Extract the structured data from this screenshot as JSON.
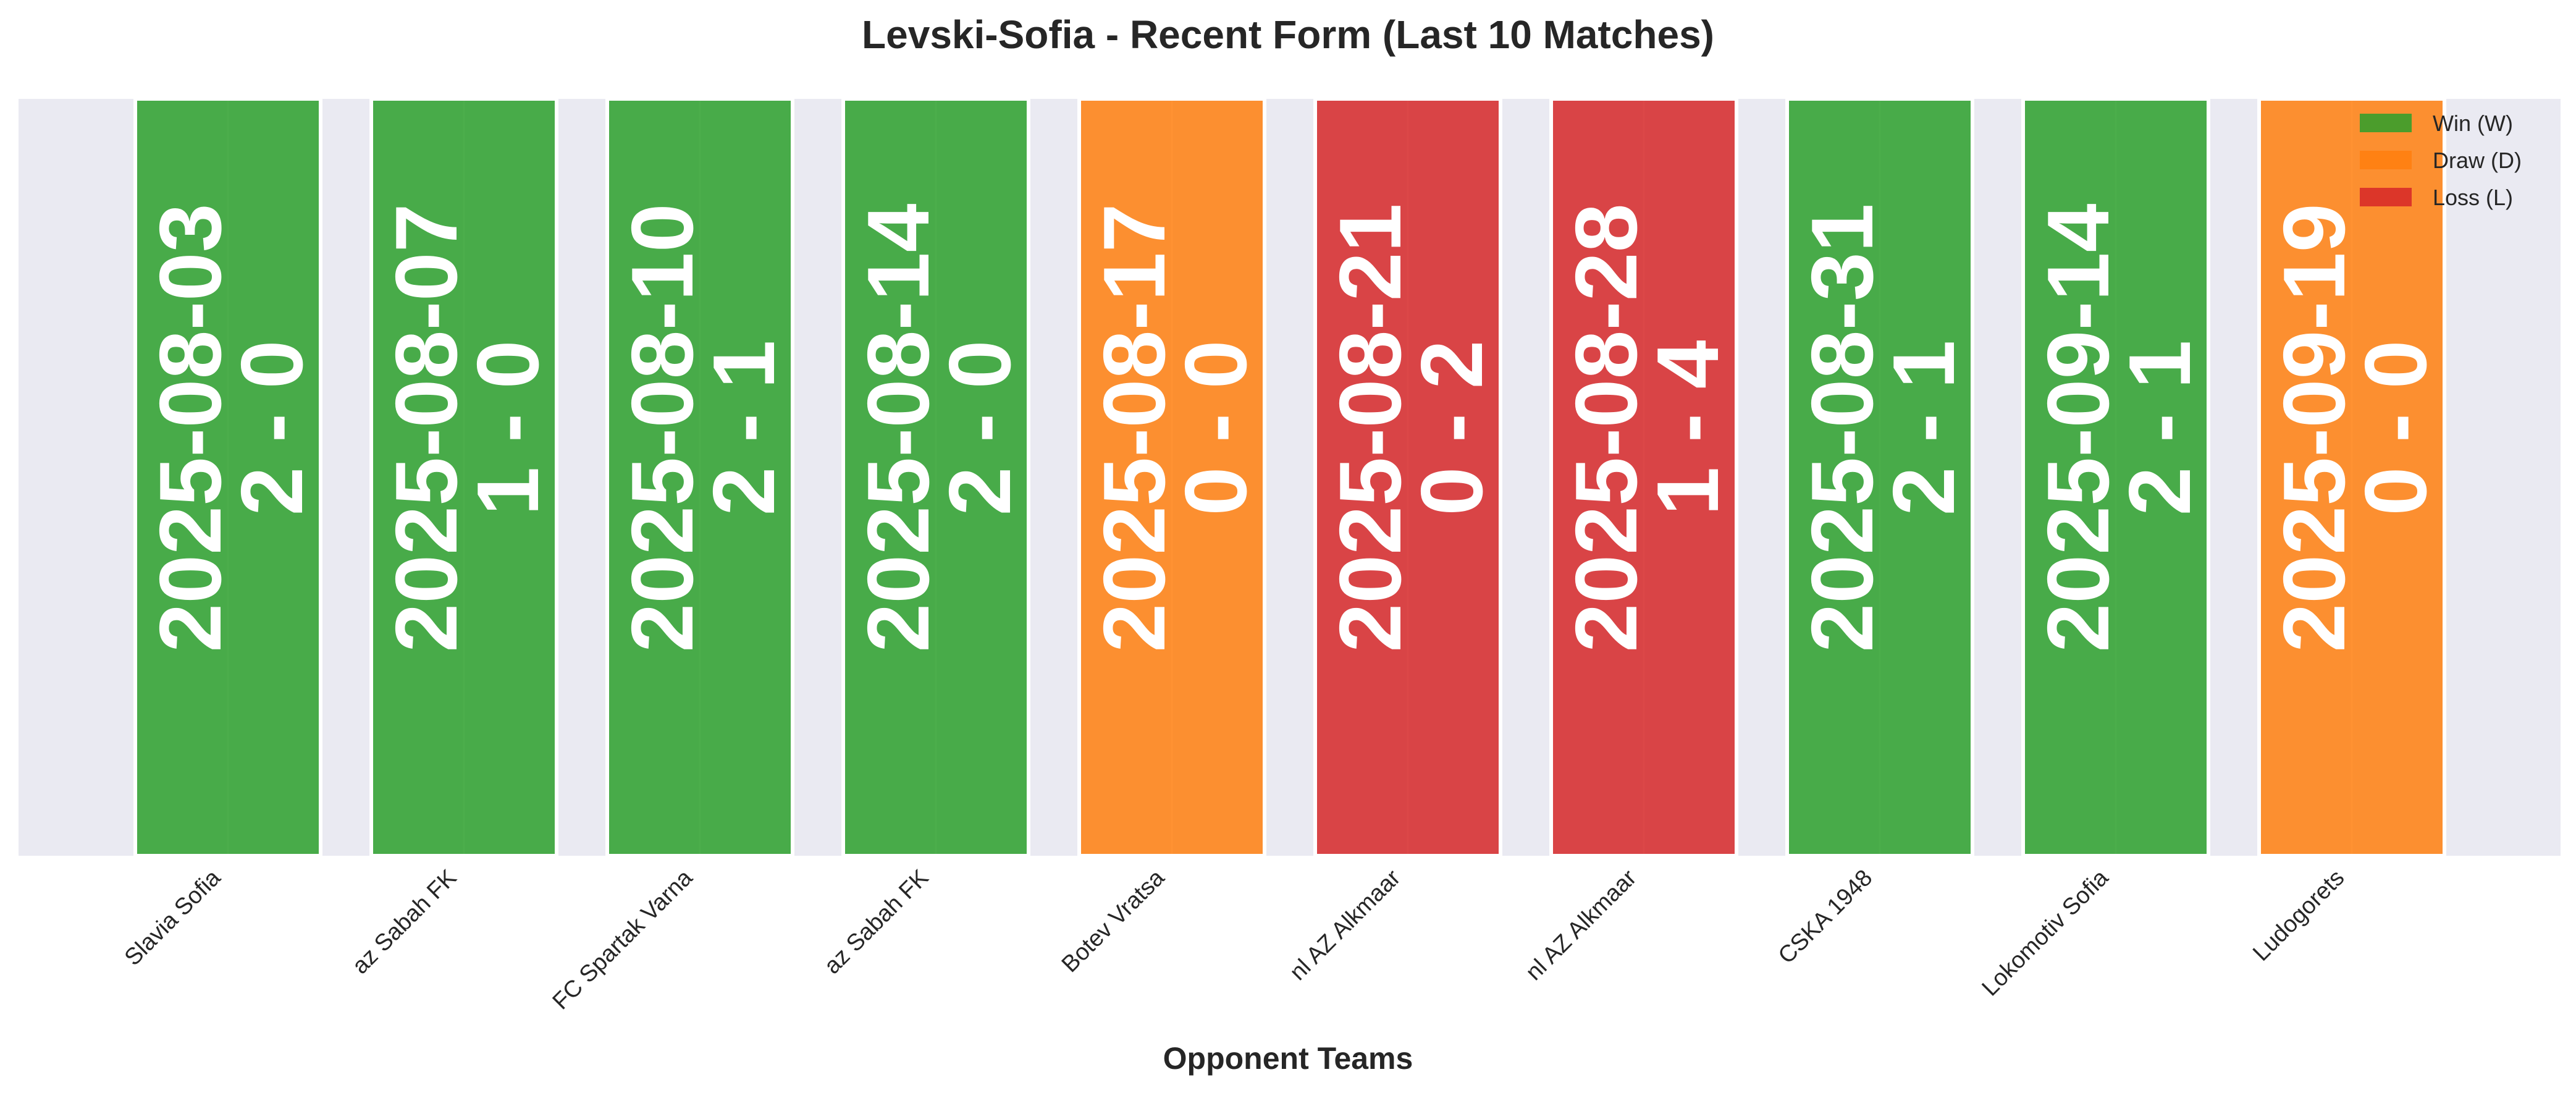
{
  "chart_data": {
    "type": "bar",
    "title": "Levski-Sofia - Recent Form (Last 10 Matches)",
    "xlabel": "Opponent Teams",
    "ylabel": "",
    "grid": true,
    "legend_position": "top-right",
    "legend": [
      {
        "key": "W",
        "label": "Win (W)",
        "color": "#2ca02c"
      },
      {
        "key": "D",
        "label": "Draw (D)",
        "color": "#ff7f0e"
      },
      {
        "key": "L",
        "label": "Loss (L)",
        "color": "#d62728"
      }
    ],
    "categories": [
      "Slavia Sofia",
      "az Sabah FK",
      "FC Spartak Varna",
      "az Sabah FK",
      "Botev Vratsa",
      "nl AZ Alkmaar",
      "nl AZ Alkmaar",
      "CSKA 1948",
      "Lokomotiv Sofia",
      "Ludogorets"
    ],
    "matches": [
      {
        "opponent": "Slavia Sofia",
        "date": "2025-08-03",
        "score": "2 - 0",
        "result": "W"
      },
      {
        "opponent": "az Sabah FK",
        "date": "2025-08-07",
        "score": "1 - 0",
        "result": "W"
      },
      {
        "opponent": "FC Spartak Varna",
        "date": "2025-08-10",
        "score": "2 - 1",
        "result": "W"
      },
      {
        "opponent": "az Sabah FK",
        "date": "2025-08-14",
        "score": "2 - 0",
        "result": "W"
      },
      {
        "opponent": "Botev Vratsa",
        "date": "2025-08-17",
        "score": "0 - 0",
        "result": "D"
      },
      {
        "opponent": "nl AZ Alkmaar",
        "date": "2025-08-21",
        "score": "0 - 2",
        "result": "L"
      },
      {
        "opponent": "nl AZ Alkmaar",
        "date": "2025-08-28",
        "score": "1 - 4",
        "result": "L"
      },
      {
        "opponent": "CSKA 1948",
        "date": "2025-08-31",
        "score": "2 - 1",
        "result": "W"
      },
      {
        "opponent": "Lokomotiv Sofia",
        "date": "2025-09-14",
        "score": "2 - 1",
        "result": "W"
      },
      {
        "opponent": "Ludogorets",
        "date": "2025-09-19",
        "score": "0 - 0",
        "result": "D"
      }
    ],
    "values": [
      1,
      1,
      1,
      1,
      1,
      1,
      1,
      1,
      1,
      1
    ],
    "ylim": [
      0,
      1
    ]
  },
  "colors": {
    "plot_background": "#eaeaf2",
    "grid": "#ffffff",
    "W": "#2ca02c",
    "D": "#ff7f0e",
    "L": "#d62728"
  }
}
